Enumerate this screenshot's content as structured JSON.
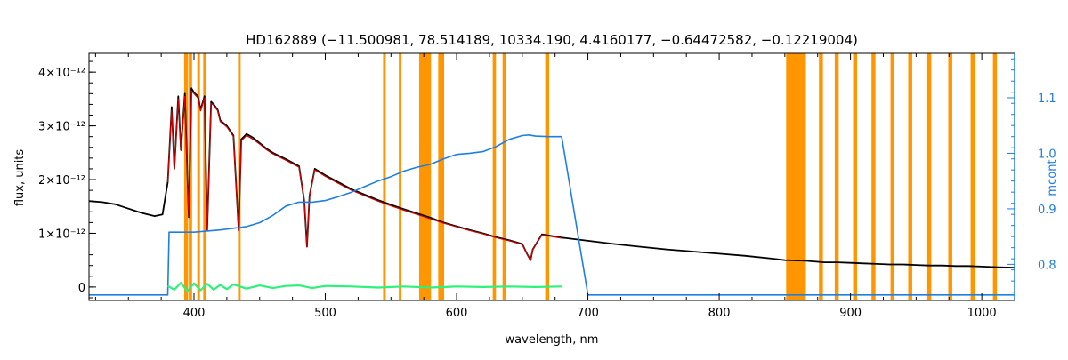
{
  "chart_data": {
    "type": "line",
    "title": "HD162889    (−11.500981, 78.514189, 10334.190, 4.4160177, −0.64472582, −0.12219004)",
    "xlabel": "wavelength, nm",
    "ylabel": "flux, units",
    "y2label": "mcont",
    "xlim": [
      320,
      1025
    ],
    "ylim": [
      -2.5e-13,
      4.35e-12
    ],
    "y2lim": [
      0.735,
      1.18
    ],
    "x_ticks": [
      400,
      500,
      600,
      700,
      800,
      900,
      1000
    ],
    "y_ticks": [
      {
        "value": 0,
        "label": "0"
      },
      {
        "value": 1e-12,
        "label": "1×10⁻¹²"
      },
      {
        "value": 2e-12,
        "label": "2×10⁻¹²"
      },
      {
        "value": 3e-12,
        "label": "3×10⁻¹²"
      },
      {
        "value": 4e-12,
        "label": "4×10⁻¹²"
      }
    ],
    "y2_ticks": [
      {
        "value": 0.8,
        "label": "0.8"
      },
      {
        "value": 0.9,
        "label": "0.9"
      },
      {
        "value": 1.0,
        "label": "1.0"
      },
      {
        "value": 1.1,
        "label": "1.1"
      }
    ],
    "colors": {
      "observed": "#000000",
      "model": "#d40000",
      "mcont": "#1f7fe0",
      "residual": "#2ef07a",
      "mask": "#ff9600",
      "axis": "#000000",
      "right_axis": "#1f7fe0"
    },
    "masked_ranges": [
      [
        392.5,
        395.5
      ],
      [
        396.0,
        398.5
      ],
      [
        402.5,
        404.5
      ],
      [
        407.0,
        409.5
      ],
      [
        433.5,
        435.5
      ],
      [
        544.0,
        546.0
      ],
      [
        556.0,
        558.0
      ],
      [
        571.5,
        580.5
      ],
      [
        586.0,
        590.5
      ],
      [
        627.5,
        630.0
      ],
      [
        635.0,
        637.5
      ],
      [
        667.5,
        670.5
      ],
      [
        851.0,
        866.0
      ],
      [
        876.0,
        879.0
      ],
      [
        888.0,
        891.0
      ],
      [
        902.0,
        905.0
      ],
      [
        916.0,
        919.0
      ],
      [
        930.5,
        933.5
      ],
      [
        944.0,
        947.0
      ],
      [
        958.5,
        961.5
      ],
      [
        974.5,
        977.5
      ],
      [
        991.5,
        995.0
      ],
      [
        1008.5,
        1011.5
      ]
    ],
    "series": [
      {
        "id": "observed",
        "x": [
          320,
          330,
          340,
          350,
          360,
          370,
          376,
          380,
          383,
          385,
          388,
          390,
          393,
          396,
          398,
          400,
          403,
          405,
          408,
          410,
          413,
          415,
          418,
          420,
          425,
          430,
          434,
          436,
          440,
          445,
          450,
          455,
          460,
          470,
          480,
          484,
          486,
          488,
          492,
          500,
          510,
          520,
          530,
          540,
          550,
          560,
          570,
          580,
          590,
          600,
          610,
          620,
          630,
          640,
          650,
          654,
          656.3,
          658,
          665,
          680,
          700,
          720,
          740,
          760,
          780,
          800,
          820,
          840,
          850,
          866,
          870,
          880,
          890,
          900,
          910,
          920,
          930,
          940,
          950,
          960,
          970,
          980,
          990,
          1000,
          1010,
          1025
        ],
        "y": [
          1.6e-12,
          1.58e-12,
          1.54e-12,
          1.46e-12,
          1.38e-12,
          1.32e-12,
          1.35e-12,
          1.95e-12,
          3.35e-12,
          2.2e-12,
          3.55e-12,
          2.55e-12,
          3.6e-12,
          1.3e-12,
          3.7e-12,
          3.62e-12,
          3.55e-12,
          3.3e-12,
          3.55e-12,
          1.05e-12,
          3.45e-12,
          3.4e-12,
          3.3e-12,
          3.1e-12,
          3e-12,
          2.82e-12,
          1.05e-12,
          2.75e-12,
          2.85e-12,
          2.78e-12,
          2.68e-12,
          2.58e-12,
          2.5e-12,
          2.38e-12,
          2.25e-12,
          1.6e-12,
          7.5e-13,
          1.7e-12,
          2.2e-12,
          2.08e-12,
          1.95e-12,
          1.82e-12,
          1.72e-12,
          1.62e-12,
          1.53e-12,
          1.45e-12,
          1.37e-12,
          1.29e-12,
          1.2e-12,
          1.13e-12,
          1.06e-12,
          1e-12,
          9.3e-13,
          8.7e-13,
          8e-13,
          6e-13,
          5e-13,
          7e-13,
          9.8e-13,
          9.2e-13,
          8.6e-13,
          8e-13,
          7.5e-13,
          7e-13,
          6.6e-13,
          6.2e-13,
          5.8e-13,
          5.3e-13,
          5e-13,
          4.9e-13,
          4.8e-13,
          4.6e-13,
          4.6e-13,
          4.5e-13,
          4.4e-13,
          4.3e-13,
          4.2e-13,
          4.2e-13,
          4.1e-13,
          4e-13,
          4e-13,
          3.9e-13,
          3.9e-13,
          3.8e-13,
          3.7e-13,
          3.6e-13
        ]
      },
      {
        "id": "model",
        "x": [
          380,
          383,
          385,
          388,
          390,
          393,
          396,
          398,
          400,
          403,
          405,
          408,
          410,
          413,
          415,
          418,
          420,
          425,
          430,
          434,
          436,
          440,
          445,
          450,
          455,
          460,
          470,
          480,
          484,
          486,
          488,
          492,
          500,
          510,
          520,
          530,
          540,
          550,
          560,
          570,
          580,
          590,
          600,
          610,
          620,
          630,
          640,
          650,
          654,
          656.3,
          658,
          665,
          680
        ],
        "y": [
          1.95e-12,
          3.3e-12,
          2.2e-12,
          3.5e-12,
          2.55e-12,
          3.55e-12,
          1.3e-12,
          3.65e-12,
          3.6e-12,
          3.52e-12,
          3.28e-12,
          3.52e-12,
          1.05e-12,
          3.42e-12,
          3.38e-12,
          3.28e-12,
          3.08e-12,
          2.98e-12,
          2.8e-12,
          1.05e-12,
          2.72e-12,
          2.82e-12,
          2.75e-12,
          2.66e-12,
          2.56e-12,
          2.48e-12,
          2.36e-12,
          2.23e-12,
          1.6e-12,
          7.5e-13,
          1.7e-12,
          2.18e-12,
          2.06e-12,
          1.93e-12,
          1.8e-12,
          1.7e-12,
          1.6e-12,
          1.51e-12,
          1.43e-12,
          1.35e-12,
          1.27e-12,
          1.19e-12,
          1.12e-12,
          1.05e-12,
          9.9e-13,
          9.2e-13,
          8.6e-13,
          7.9e-13,
          6e-13,
          5e-13,
          7e-13,
          9.7e-13,
          9.1e-13
        ]
      },
      {
        "id": "mcont",
        "axis": "right",
        "x": [
          320,
          340,
          360,
          380,
          381,
          400,
          420,
          440,
          450,
          460,
          470,
          480,
          490,
          500,
          510,
          520,
          530,
          540,
          550,
          560,
          570,
          580,
          590,
          600,
          610,
          620,
          630,
          640,
          650,
          655,
          660,
          670,
          680,
          700,
          750,
          800,
          850,
          900,
          950,
          1000,
          1025
        ],
        "y": [
          0.745,
          0.745,
          0.745,
          0.745,
          0.858,
          0.858,
          0.862,
          0.868,
          0.875,
          0.888,
          0.905,
          0.912,
          0.912,
          0.915,
          0.922,
          0.93,
          0.94,
          0.95,
          0.958,
          0.968,
          0.975,
          0.98,
          0.99,
          0.998,
          1.0,
          1.003,
          1.012,
          1.025,
          1.032,
          1.033,
          1.031,
          1.03,
          1.03,
          0.745,
          0.745,
          0.745,
          0.745,
          0.745,
          0.745,
          0.745,
          0.745
        ]
      },
      {
        "id": "residual",
        "x": [
          380,
          385,
          390,
          395,
          400,
          405,
          410,
          415,
          420,
          425,
          430,
          440,
          450,
          460,
          470,
          480,
          490,
          500,
          520,
          540,
          560,
          580,
          600,
          620,
          640,
          660,
          680
        ],
        "y": [
          2e-14,
          -5e-14,
          8e-14,
          -8e-14,
          7e-14,
          -6e-14,
          6e-14,
          -5e-14,
          4e-14,
          -4e-14,
          5e-14,
          -3e-14,
          3e-14,
          -2e-14,
          2e-14,
          3e-14,
          -2e-14,
          2e-14,
          1e-14,
          -1e-14,
          1e-14,
          -1e-14,
          1e-14,
          0.0,
          1e-14,
          0.0,
          1e-14
        ]
      }
    ]
  }
}
